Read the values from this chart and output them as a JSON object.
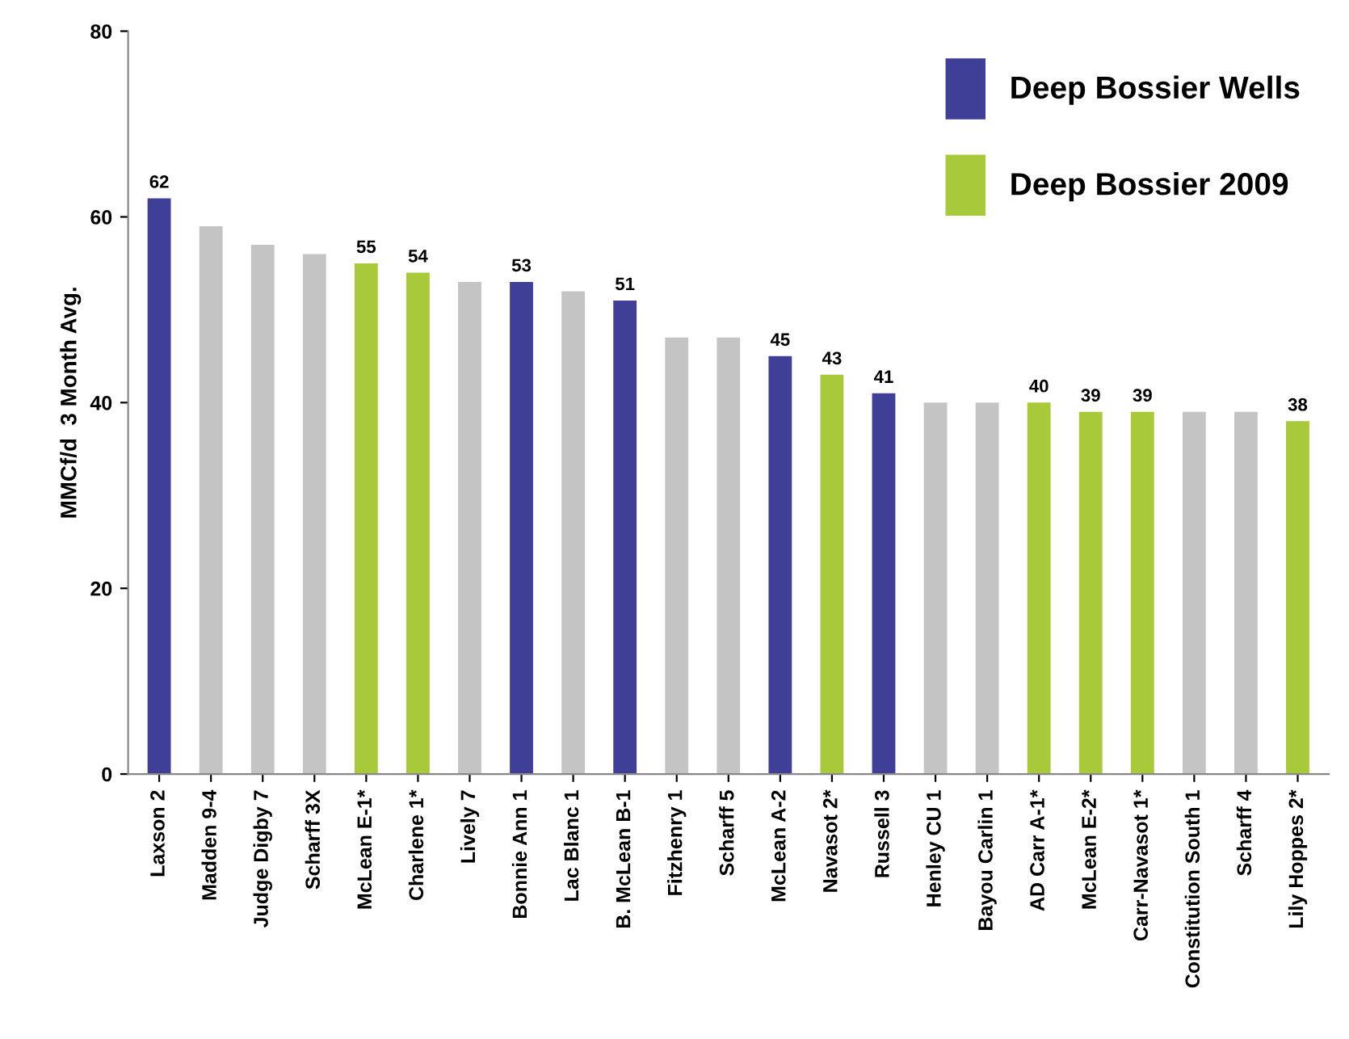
{
  "chart_data": {
    "type": "bar",
    "ylabel": "MMCf/d  3 Month Avg.",
    "categories": [
      "Laxson 2",
      "Madden 9-4",
      "Judge Digby 7",
      "Scharff 3X",
      "McLean E-1*",
      "Charlene 1*",
      "Lively 7",
      "Bonnie Ann 1",
      "Lac Blanc 1",
      "B. McLean B-1",
      "Fitzhenry 1",
      "Scharff 5",
      "McLean A-2",
      "Navasot 2*",
      "Russell 3",
      "Henley CU 1",
      "Bayou Carlin 1",
      "AD Carr A-1*",
      "McLean E-2*",
      "Carr-Navasot 1*",
      "Constitution South 1",
      "Scharff 4",
      "Lily Hoppes 2*"
    ],
    "series": [
      {
        "name": "Deep Bossier Wells",
        "color": "#3f3f98",
        "values": [
          62,
          null,
          null,
          null,
          null,
          null,
          null,
          53,
          null,
          51,
          null,
          null,
          45,
          null,
          41,
          null,
          null,
          null,
          null,
          null,
          null,
          null,
          null
        ],
        "value_labels": [
          "62",
          null,
          null,
          null,
          null,
          null,
          null,
          "53",
          null,
          "51",
          null,
          null,
          "45",
          null,
          "41",
          null,
          null,
          null,
          null,
          null,
          null,
          null,
          null
        ]
      },
      {
        "name": "Deep Bossier 2009",
        "color": "#a8c93a",
        "values": [
          null,
          null,
          null,
          null,
          55,
          54,
          null,
          null,
          null,
          null,
          null,
          null,
          null,
          43,
          null,
          null,
          null,
          40,
          39,
          39,
          null,
          null,
          38
        ],
        "value_labels": [
          null,
          null,
          null,
          null,
          "55",
          "54",
          null,
          null,
          null,
          null,
          null,
          null,
          null,
          "43",
          null,
          null,
          null,
          "40",
          "39",
          "39",
          null,
          null,
          "38"
        ]
      },
      {
        "color": "#c4c4c4",
        "values": [
          null,
          59,
          57,
          56,
          null,
          null,
          53,
          null,
          52,
          null,
          47,
          47,
          null,
          null,
          null,
          40,
          40,
          null,
          null,
          null,
          39,
          39,
          null
        ]
      }
    ],
    "ylim": [
      0,
      80
    ],
    "yticks": [
      0,
      20,
      40,
      60,
      80
    ],
    "grid": false,
    "legend": "top right"
  }
}
